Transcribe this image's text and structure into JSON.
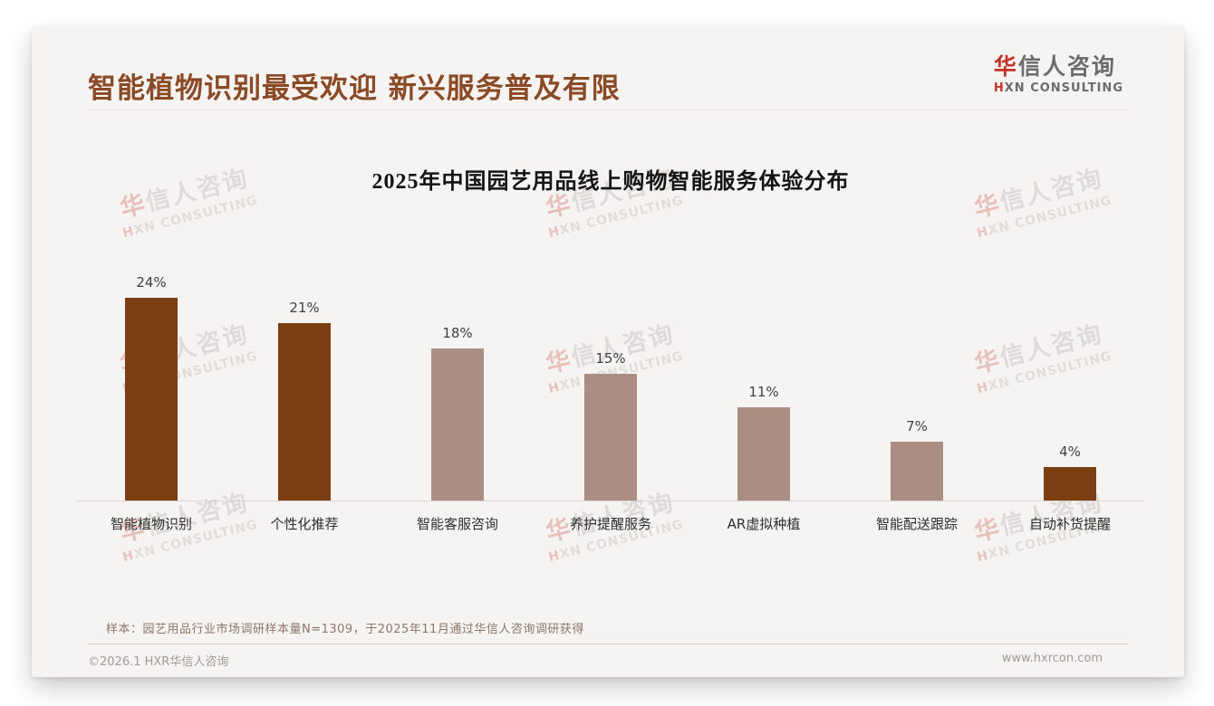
{
  "header": {
    "title": "智能植物识别最受欢迎 新兴服务普及有限"
  },
  "logo": {
    "cn_accent": "华",
    "cn_rest": "信人咨询",
    "en_accent": "H",
    "en_rest": "XN CONSULTING"
  },
  "chart_data": {
    "type": "bar",
    "title": "2025年中国园艺用品线上购物智能服务体验分布",
    "categories": [
      "智能植物识别",
      "个性化推荐",
      "智能客服咨询",
      "养护提醒服务",
      "AR虚拟种植",
      "智能配送跟踪",
      "自动补货提醒"
    ],
    "values": [
      24,
      21,
      18,
      15,
      11,
      7,
      4
    ],
    "value_labels": [
      "24%",
      "21%",
      "18%",
      "15%",
      "11%",
      "7%",
      "4%"
    ],
    "unit": "%",
    "ylim": [
      0,
      26
    ],
    "grid": false,
    "legend": false,
    "xlabel": "",
    "ylabel": "",
    "bar_colors": [
      "#7B3D12",
      "#7B3D12",
      "#AB8D83",
      "#AB8D83",
      "#AB8D83",
      "#AB8D83",
      "#7B3D12"
    ],
    "highlight_color": "#7B3D12",
    "normal_color": "#AB8D83"
  },
  "watermark": {
    "cn_accent": "华",
    "cn_rest": "信人咨询",
    "en_accent": "H",
    "en_rest": "XN CONSULTING"
  },
  "footer": {
    "note": "样本：园艺用品行业市场调研样本量N=1309，于2025年11月通过华信人咨询调研获得",
    "copyright": "©2026.1 HXR华信人咨询",
    "website": "www.hxrcon.com"
  },
  "colors": {
    "page_title": "#8B4A26",
    "logo_accent_red": "#C5342B",
    "logo_gray": "#6E6C6A",
    "card_background": "#F5F4F2",
    "dark_bar": "#7B3D12",
    "light_bar": "#AB8D83",
    "note_text": "#8D7668",
    "footer_text": "#A09A96"
  }
}
